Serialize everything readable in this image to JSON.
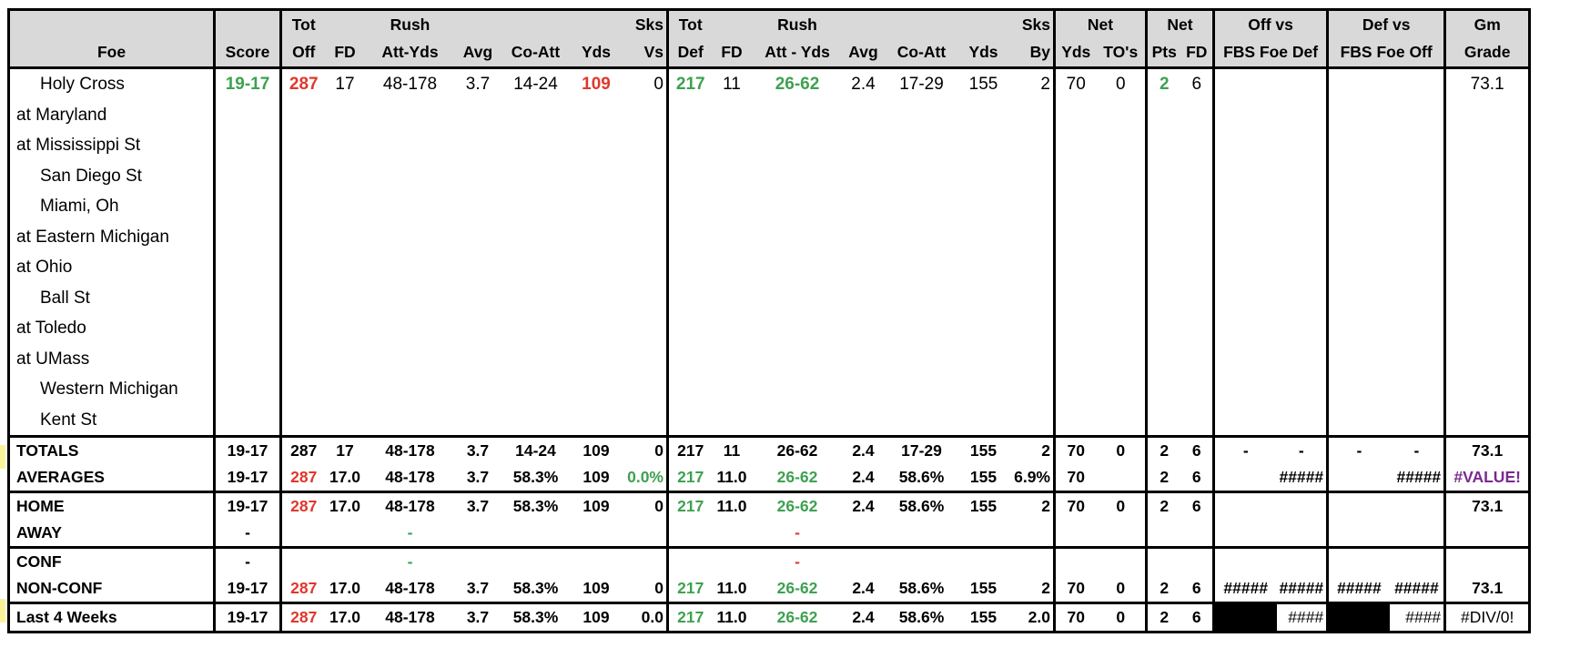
{
  "header": {
    "row1": {
      "tot_off": "Tot",
      "rush_off": "Rush",
      "sks_vs": "Sks",
      "tot_def": "Tot",
      "rush_def": "Rush",
      "sks_by": "Sks",
      "net_yds": "Net",
      "net_pts": "Net",
      "off_vs": "Off vs",
      "def_vs": "Def vs",
      "gm": "Gm"
    },
    "row2": {
      "foe": "Foe",
      "score": "Score",
      "off": "Off",
      "fd": "FD",
      "att_yds": "Att-Yds",
      "avg": "Avg",
      "co_att": "Co-Att",
      "yds": "Yds",
      "vs": "Vs",
      "def": "Def",
      "fd2": "FD",
      "att_yds2": "Att - Yds",
      "avg2": "Avg",
      "co_att2": "Co-Att",
      "yds2": "Yds",
      "by": "By",
      "net_yds": "Yds",
      "tos": "TO's",
      "pts": "Pts",
      "fd3": "FD",
      "fbs_foe_def": "FBS Foe Def",
      "fbs_foe_off": "FBS Foe Off",
      "grade": "Grade"
    }
  },
  "games": [
    {
      "foe": "Holy Cross",
      "home": true,
      "score": "19-17",
      "tot_off": "287",
      "fd": "17",
      "rush": "48-178",
      "avg": "3.7",
      "co_att": "14-24",
      "yds": "109",
      "sks_vs": "0",
      "tot_def": "217",
      "fd_d": "11",
      "rush_d": "26-62",
      "avg_d": "2.4",
      "co_att_d": "17-29",
      "yds_d": "155",
      "sks_by": "2",
      "net_yds": "70",
      "net_to": "0",
      "net_pts": "2",
      "net_fd": "6",
      "grade": "73.1"
    },
    {
      "foe": "at Maryland",
      "home": false
    },
    {
      "foe": "at Mississippi St",
      "home": false
    },
    {
      "foe": "San Diego St",
      "home": true
    },
    {
      "foe": "Miami, Oh",
      "home": true
    },
    {
      "foe": "at Eastern Michigan",
      "home": false
    },
    {
      "foe": "at Ohio",
      "home": false
    },
    {
      "foe": "Ball St",
      "home": true
    },
    {
      "foe": "at Toledo",
      "home": false
    },
    {
      "foe": "at UMass",
      "home": false
    },
    {
      "foe": "Western Michigan",
      "home": true
    },
    {
      "foe": "Kent St",
      "home": true
    }
  ],
  "totals": {
    "label": "TOTALS",
    "score": "19-17",
    "tot_off": "287",
    "fd": "17",
    "rush": "48-178",
    "avg": "3.7",
    "co_att": "14-24",
    "yds": "109",
    "sks_vs": "0",
    "tot_def": "217",
    "fd_d": "11",
    "rush_d": "26-62",
    "avg_d": "2.4",
    "co_att_d": "17-29",
    "yds_d": "155",
    "sks_by": "2",
    "net_yds": "70",
    "net_to": "0",
    "net_pts": "2",
    "net_fd": "6",
    "off_a": "-",
    "off_b": "-",
    "def_a": "-",
    "def_b": "-",
    "grade": "73.1"
  },
  "averages": {
    "label": "AVERAGES",
    "score": "19-17",
    "tot_off": "287",
    "fd": "17.0",
    "rush": "48-178",
    "avg": "3.7",
    "co_att": "58.3%",
    "yds": "109",
    "sks_vs": "0.0%",
    "tot_def": "217",
    "fd_d": "11.0",
    "rush_d": "26-62",
    "avg_d": "2.4",
    "co_att_d": "58.6%",
    "yds_d": "155",
    "sks_by": "6.9%",
    "net_yds": "70",
    "net_pts": "2",
    "net_fd": "6",
    "off_b": "#####",
    "def_b": "#####",
    "grade": "#VALUE!"
  },
  "home": {
    "label": "HOME",
    "score": "19-17",
    "tot_off": "287",
    "fd": "17.0",
    "rush": "48-178",
    "avg": "3.7",
    "co_att": "58.3%",
    "yds": "109",
    "sks_vs": "0",
    "tot_def": "217",
    "fd_d": "11.0",
    "rush_d": "26-62",
    "avg_d": "2.4",
    "co_att_d": "58.6%",
    "yds_d": "155",
    "sks_by": "2",
    "net_yds": "70",
    "net_to": "0",
    "net_pts": "2",
    "net_fd": "6",
    "grade": "73.1"
  },
  "away": {
    "label": "AWAY",
    "score": "-",
    "rush": "-",
    "rush_d": "-"
  },
  "conf": {
    "label": "CONF",
    "score": "-",
    "rush": "-",
    "rush_d": "-"
  },
  "nonconf": {
    "label": "NON-CONF",
    "score": "19-17",
    "tot_off": "287",
    "fd": "17.0",
    "rush": "48-178",
    "avg": "3.7",
    "co_att": "58.3%",
    "yds": "109",
    "sks_vs": "0",
    "tot_def": "217",
    "fd_d": "11.0",
    "rush_d": "26-62",
    "avg_d": "2.4",
    "co_att_d": "58.6%",
    "yds_d": "155",
    "sks_by": "2",
    "net_yds": "70",
    "net_to": "0",
    "net_pts": "2",
    "net_fd": "6",
    "off_a": "#####",
    "off_b": "#####",
    "def_a": "#####",
    "def_b": "#####",
    "grade": "73.1"
  },
  "last4": {
    "label": "Last 4 Weeks",
    "score": "19-17",
    "tot_off": "287",
    "fd": "17.0",
    "rush": "48-178",
    "avg": "3.7",
    "co_att": "58.3%",
    "yds": "109",
    "sks_vs": "0.0",
    "tot_def": "217",
    "fd_d": "11.0",
    "rush_d": "26-62",
    "avg_d": "2.4",
    "co_att_d": "58.6%",
    "yds_d": "155",
    "sks_by": "2.0",
    "net_yds": "70",
    "net_to": "0",
    "net_pts": "2",
    "net_fd": "6",
    "off_b": "####",
    "def_b": "####",
    "grade": "#DIV/0!"
  },
  "colors": {
    "good": "#3ea14f",
    "bad": "#e1372c",
    "error": "#7a2a8f",
    "header_bg": "#d9d9d9",
    "highlight": "#fbf39a"
  }
}
